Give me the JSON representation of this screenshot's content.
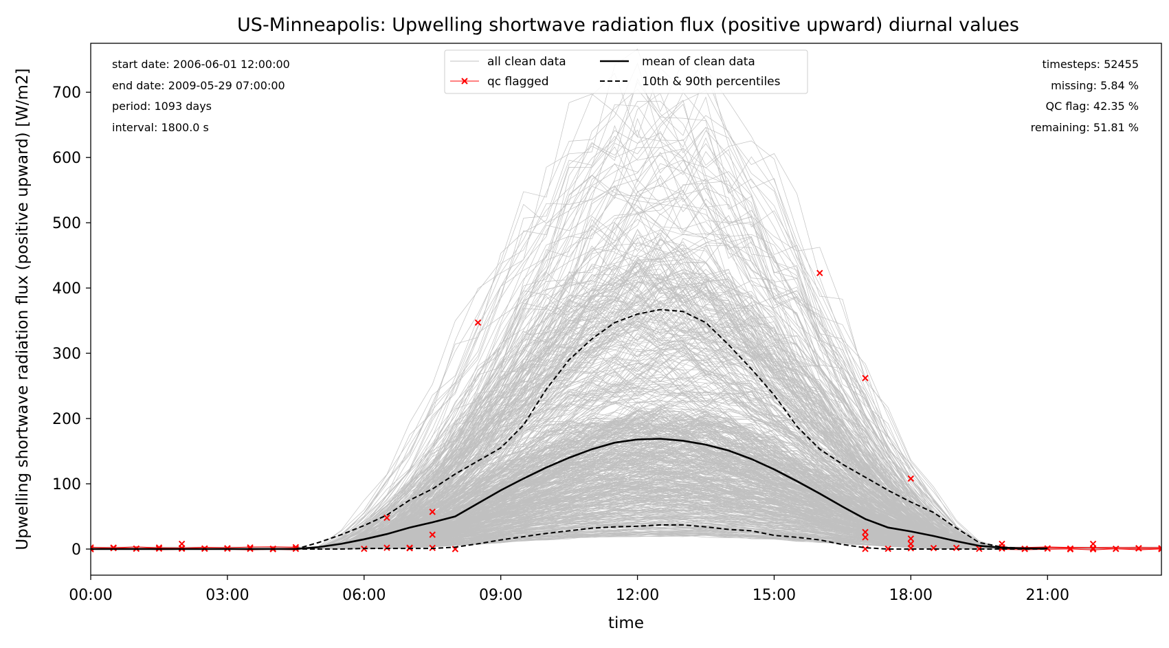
{
  "chart_data": {
    "type": "line",
    "title": "US-Minneapolis: Upwelling shortwave radiation flux (positive upward) diurnal values",
    "xlabel": "time",
    "ylabel": "Upwelling shortwave radiation flux (positive upward) [W/m2]",
    "x_unit": "hour of day",
    "xlim": [
      0,
      23.5
    ],
    "ylim": [
      -40,
      775
    ],
    "x_ticks": [
      {
        "hour": 0,
        "label": "00:00"
      },
      {
        "hour": 3,
        "label": "03:00"
      },
      {
        "hour": 6,
        "label": "06:00"
      },
      {
        "hour": 9,
        "label": "09:00"
      },
      {
        "hour": 12,
        "label": "12:00"
      },
      {
        "hour": 15,
        "label": "15:00"
      },
      {
        "hour": 18,
        "label": "18:00"
      },
      {
        "hour": 21,
        "label": "21:00"
      }
    ],
    "y_ticks": [
      0,
      100,
      200,
      300,
      400,
      500,
      600,
      700
    ],
    "grid": false,
    "legend": {
      "placement": "upper center",
      "entries": [
        {
          "label": "all clean data",
          "color": "#c0c0c0",
          "style": "thin-line"
        },
        {
          "label": "qc flagged",
          "color": "#ff0000",
          "style": "line-x-marker"
        },
        {
          "label": "mean of clean data",
          "color": "#000000",
          "style": "solid"
        },
        {
          "label": "10th & 90th percentiles",
          "color": "#000000",
          "style": "dashed"
        }
      ]
    },
    "stats_left": [
      "start date: 2006-06-01 12:00:00",
      "end date: 2009-05-29 07:00:00",
      "period: 1093 days",
      "interval: 1800.0 s"
    ],
    "stats_right": [
      "timesteps: 52455",
      "missing: 5.84 %",
      "QC flag: 42.35 %",
      "remaining: 51.81 %"
    ],
    "series": [
      {
        "name": "mean of clean data",
        "x": [
          0,
          0.5,
          1,
          1.5,
          2,
          2.5,
          3,
          3.5,
          4,
          4.5,
          5,
          5.5,
          6,
          6.5,
          7,
          7.5,
          8,
          8.5,
          9,
          9.5,
          10,
          10.5,
          11,
          11.5,
          12,
          12.5,
          13,
          13.5,
          14,
          14.5,
          15,
          15.5,
          16,
          16.5,
          17,
          17.5,
          18,
          18.5,
          19,
          19.5,
          20,
          20.5,
          21
        ],
        "values": [
          0,
          0,
          0,
          0,
          0,
          0,
          0,
          0,
          0,
          0,
          3,
          8,
          15,
          23,
          33,
          41,
          50,
          70,
          90,
          108,
          125,
          140,
          153,
          163,
          168,
          169,
          166,
          160,
          151,
          138,
          122,
          104,
          85,
          65,
          46,
          33,
          27,
          20,
          12,
          5,
          2,
          1,
          1
        ]
      },
      {
        "name": "10th percentile",
        "x": [
          0,
          1,
          2,
          3,
          4,
          4.5,
          5,
          5.5,
          6,
          6.5,
          7,
          7.5,
          8,
          8.5,
          9,
          9.5,
          10,
          10.5,
          11,
          11.5,
          12,
          12.5,
          13,
          13.5,
          14,
          14.5,
          15,
          15.5,
          16,
          16.5,
          17,
          17.5,
          18,
          19,
          20,
          21
        ],
        "values": [
          0,
          0,
          0,
          0,
          0,
          0,
          0,
          0,
          1,
          1,
          1,
          1,
          3,
          8,
          14,
          19,
          24,
          28,
          32,
          34,
          35,
          37,
          37,
          34,
          30,
          28,
          21,
          18,
          14,
          7,
          2,
          0,
          0,
          0,
          0,
          0
        ]
      },
      {
        "name": "90th percentile",
        "x": [
          0,
          1,
          2,
          3,
          4,
          4.5,
          5,
          5.5,
          6,
          6.5,
          7,
          7.5,
          8,
          8.5,
          9,
          9.5,
          10,
          10.5,
          11,
          11.5,
          12,
          12.5,
          13,
          13.5,
          14,
          14.5,
          15,
          15.5,
          16,
          16.5,
          17,
          17.5,
          18,
          18.5,
          19,
          19.5,
          20,
          20.5,
          21
        ],
        "values": [
          0,
          0,
          0,
          0,
          0,
          0,
          10,
          22,
          36,
          52,
          75,
          92,
          115,
          135,
          155,
          190,
          245,
          290,
          322,
          347,
          360,
          367,
          364,
          347,
          313,
          276,
          236,
          188,
          153,
          130,
          110,
          90,
          72,
          56,
          32,
          10,
          3,
          1,
          1
        ]
      }
    ],
    "clean_data_envelope": {
      "note": "hundreds of daily curves",
      "peak_max": 715,
      "dense_band_max": 205
    },
    "qc_flagged_points": [
      {
        "x": 8.5,
        "y": 347
      },
      {
        "x": 6.5,
        "y": 48
      },
      {
        "x": 7.5,
        "y": 57
      },
      {
        "x": 7.5,
        "y": 22
      },
      {
        "x": 7,
        "y": 2
      },
      {
        "x": 8,
        "y": 0
      },
      {
        "x": 16,
        "y": 423
      },
      {
        "x": 17,
        "y": 262
      },
      {
        "x": 18,
        "y": 108
      },
      {
        "x": 17,
        "y": 26
      },
      {
        "x": 17,
        "y": 18
      },
      {
        "x": 18,
        "y": 16
      },
      {
        "x": 18,
        "y": 8
      },
      {
        "x": 20,
        "y": 8
      },
      {
        "x": 22,
        "y": 8
      },
      {
        "x": 2,
        "y": 8
      }
    ]
  }
}
